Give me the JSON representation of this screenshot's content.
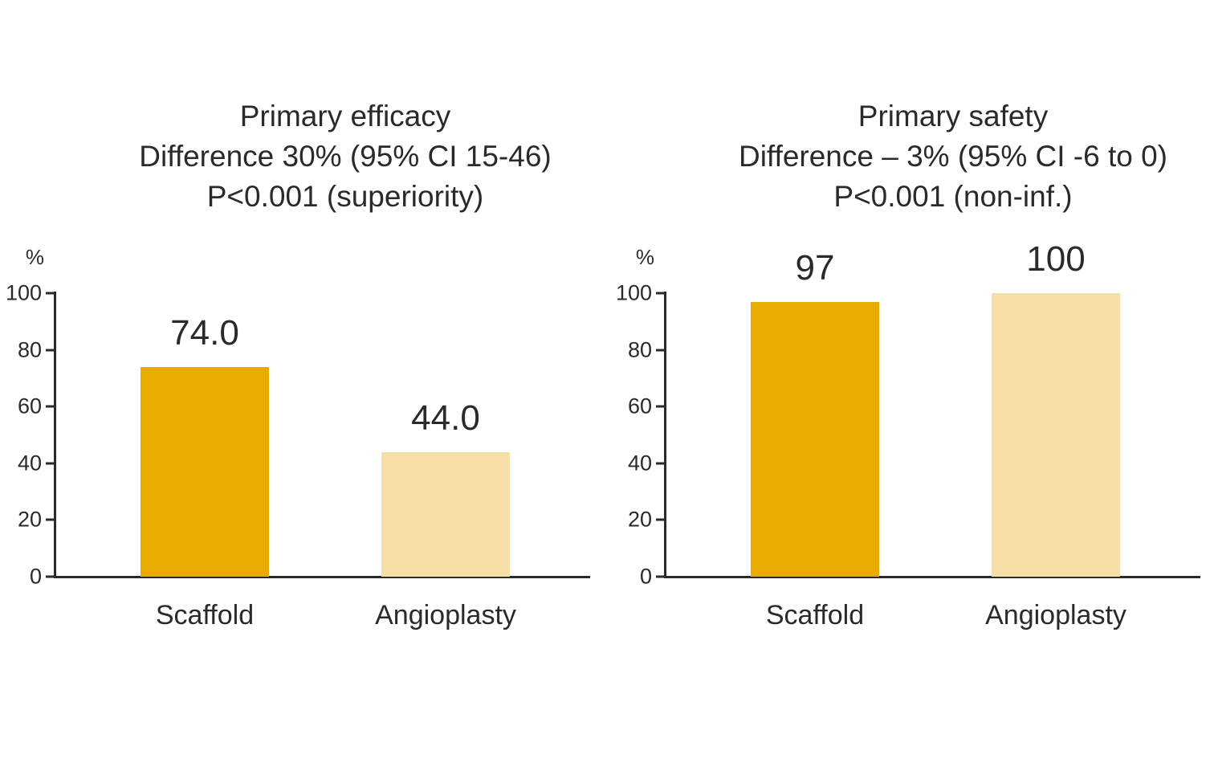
{
  "page": {
    "background": "#ffffff"
  },
  "colors": {
    "bar_dark": "#e8ac00",
    "bar_light": "#f6dfa7",
    "axis": "#2b2a29",
    "text": "#2b2a29",
    "background": "#ffffff"
  },
  "chart_data": [
    {
      "type": "bar",
      "title": "Primary efficacy",
      "title_lines": [
        "Primary efficacy",
        "Difference 30% (95% CI 15-46)",
        "P<0.001 (superiority)"
      ],
      "categories": [
        "Scaffold",
        "Angioplasty"
      ],
      "values": [
        74.0,
        44.0
      ],
      "value_labels": [
        "74.0",
        "44.0"
      ],
      "ylabel": "%",
      "xlabel": "",
      "ylim": [
        0,
        100
      ],
      "yticks": [
        0,
        20,
        40,
        60,
        80,
        100
      ],
      "bar_colors": [
        "#e8ac00",
        "#f6dfa7"
      ],
      "grid": false,
      "legend": false
    },
    {
      "type": "bar",
      "title": "Primary safety",
      "title_lines": [
        "Primary safety",
        "Difference – 3% (95% CI -6 to 0)",
        "P<0.001 (non-inf.)"
      ],
      "categories": [
        "Scaffold",
        "Angioplasty"
      ],
      "values": [
        97,
        100
      ],
      "value_labels": [
        "97",
        "100"
      ],
      "ylabel": "%",
      "xlabel": "",
      "ylim": [
        0,
        100
      ],
      "yticks": [
        0,
        20,
        40,
        60,
        80,
        100
      ],
      "bar_colors": [
        "#e8ac00",
        "#f6dfa7"
      ],
      "grid": false,
      "legend": false
    }
  ]
}
